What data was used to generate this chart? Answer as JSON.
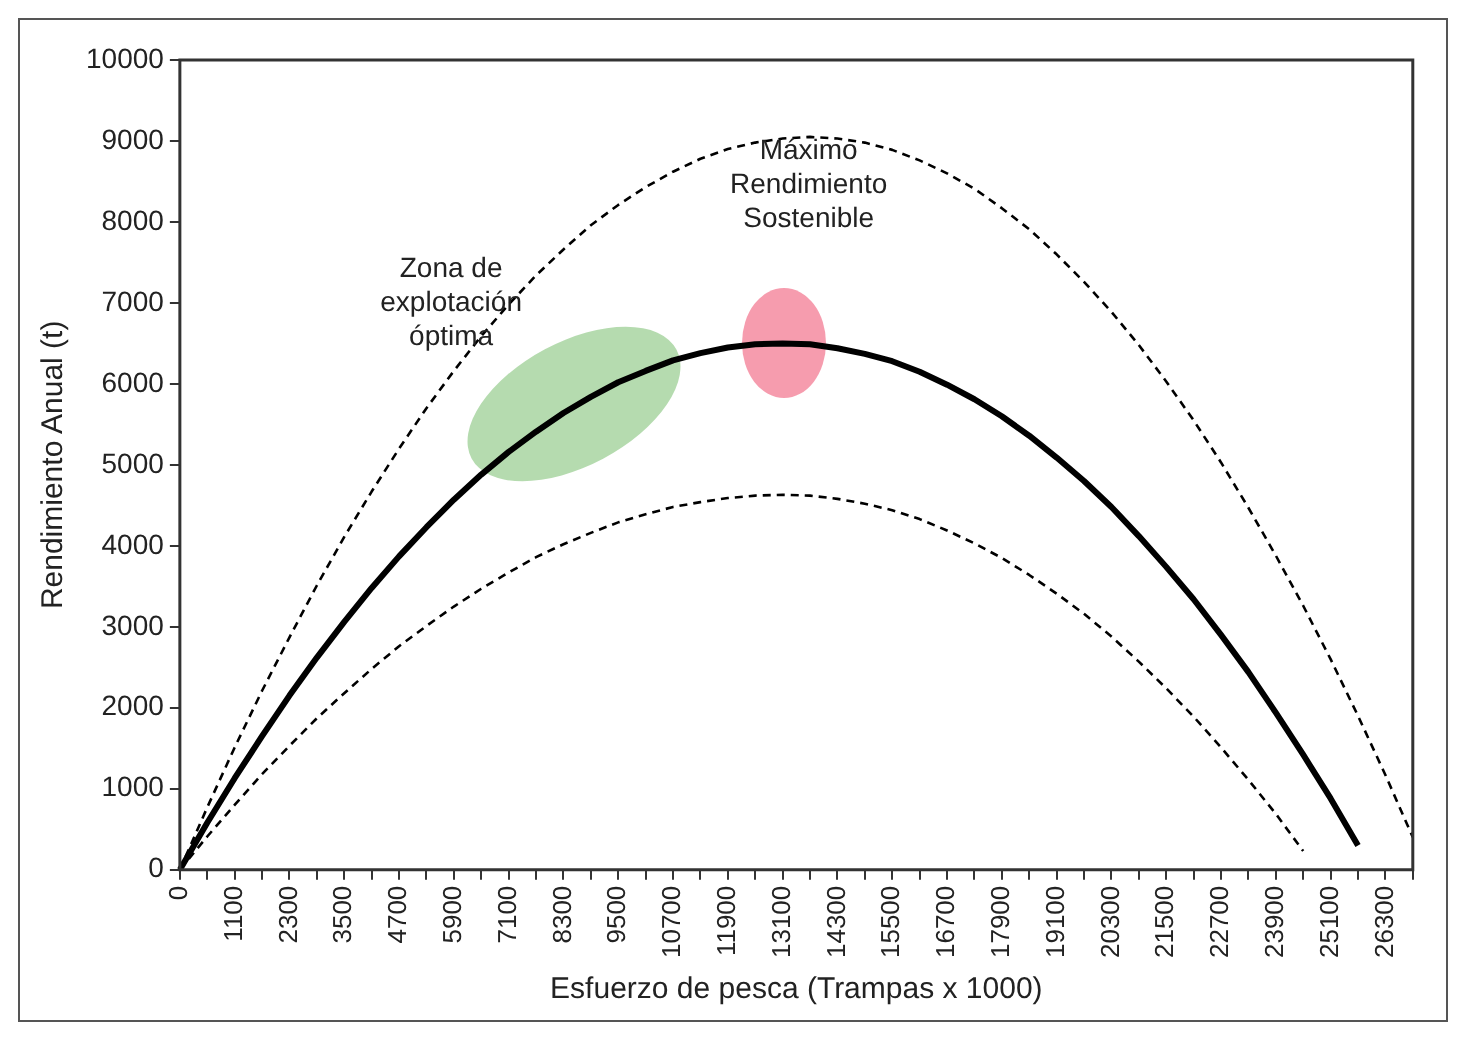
{
  "chart_data": {
    "type": "line",
    "xlabel": "Esfuerzo de pesca (Trampas x 1000)",
    "ylabel": "Rendimiento Anual (t)",
    "categories": [
      "0",
      null,
      "1100",
      null,
      "2300",
      null,
      "3500",
      null,
      "4700",
      null,
      "5900",
      null,
      "7100",
      null,
      "8300",
      null,
      "9500",
      null,
      "10700",
      null,
      "11900",
      null,
      "13100",
      null,
      "14300",
      null,
      "15500",
      null,
      "16700",
      null,
      "17900",
      null,
      "19100",
      null,
      "20300",
      null,
      "21500",
      null,
      "22700",
      null,
      "23900",
      null,
      "25100",
      null,
      "26300",
      null
    ],
    "ylim": [
      0,
      10000
    ],
    "yticks": [
      0,
      1000,
      2000,
      3000,
      4000,
      5000,
      6000,
      7000,
      8000,
      9000,
      10000
    ],
    "marker": "none",
    "series": [
      {
        "color": "#000000",
        "line_style": "dashed",
        "values": [
          0,
          770,
          1510,
          2210,
          2870,
          3510,
          4110,
          4670,
          5200,
          5700,
          6160,
          6590,
          6980,
          7340,
          7660,
          7960,
          8210,
          8430,
          8620,
          8780,
          8900,
          8980,
          9030,
          9050,
          9030,
          8980,
          8890,
          8760,
          8600,
          8410,
          8170,
          7910,
          7600,
          7260,
          6890,
          6480,
          6030,
          5550,
          5030,
          4470,
          3880,
          3260,
          2600,
          1900,
          1170,
          400
        ]
      },
      {
        "color": "#000000",
        "line_style": "solid",
        "values": [
          0,
          580,
          1130,
          1650,
          2150,
          2620,
          3060,
          3480,
          3870,
          4230,
          4570,
          4880,
          5160,
          5410,
          5640,
          5840,
          6020,
          6160,
          6290,
          6380,
          6450,
          6490,
          6500,
          6490,
          6440,
          6370,
          6280,
          6150,
          5990,
          5810,
          5600,
          5360,
          5090,
          4800,
          4480,
          4120,
          3740,
          3340,
          2900,
          2440,
          1940,
          1420,
          880,
          300,
          null,
          null
        ]
      },
      {
        "color": "#000000",
        "line_style": "dashed",
        "values": [
          0,
          410,
          800,
          1180,
          1530,
          1870,
          2180,
          2480,
          2760,
          3010,
          3250,
          3470,
          3670,
          3860,
          4020,
          4160,
          4290,
          4390,
          4480,
          4540,
          4590,
          4620,
          4630,
          4620,
          4580,
          4520,
          4440,
          4330,
          4190,
          4030,
          3850,
          3640,
          3410,
          3160,
          2880,
          2570,
          2240,
          1890,
          1510,
          1110,
          690,
          230,
          null,
          null,
          null,
          null
        ]
      }
    ],
    "annotations": [
      "Zona de explotación óptima",
      "Máximo Rendimiento Sostenible"
    ]
  }
}
